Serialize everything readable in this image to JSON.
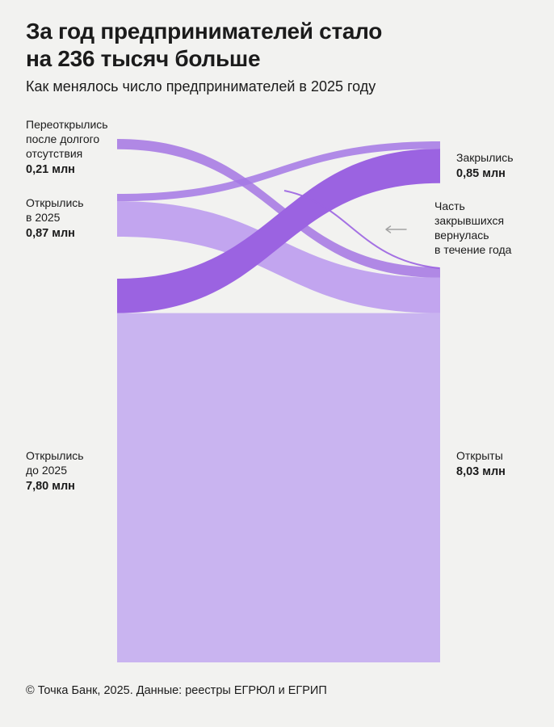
{
  "header": {
    "title_lines": [
      "За год предпринимателей стало",
      "на 236 тысяч больше"
    ],
    "subtitle": "Как менялось число предпринимателей в 2025 году"
  },
  "chart_data": {
    "type": "sankey",
    "title": "За год предпринимателей стало на 236 тысяч больше",
    "subtitle": "Как менялось число предпринимателей в 2025 году",
    "unit": "млн",
    "nodes": [
      {
        "id": "reopened",
        "side": "left",
        "label_lines": [
          "Переоткрылись",
          "после долгого",
          "отсутствия"
        ],
        "value": 0.21,
        "value_label": "0,21 млн"
      },
      {
        "id": "opened2025",
        "side": "left",
        "label_lines": [
          "Открылись",
          "в 2025"
        ],
        "value": 0.87,
        "value_label": "0,87 млн"
      },
      {
        "id": "openedBefore",
        "side": "left",
        "label_lines": [
          "Открылись",
          "до 2025"
        ],
        "value": 7.8,
        "value_label": "7,80 млн"
      },
      {
        "id": "closed",
        "side": "right",
        "label_lines": [
          "Закрылись"
        ],
        "value": 0.85,
        "value_label": "0,85 млн"
      },
      {
        "id": "open",
        "side": "right",
        "label_lines": [
          "Открыты"
        ],
        "value": 8.03,
        "value_label": "8,03 млн"
      }
    ],
    "links": [
      {
        "source": "reopened",
        "target": "open",
        "value": 0.21,
        "color": "#9e6ae2",
        "opacity": 0.78,
        "z": 3
      },
      {
        "source": "opened2025",
        "target": "closed",
        "value": 0.15,
        "color": "#a478e5",
        "opacity": 0.85,
        "z": 4
      },
      {
        "source": "opened2025",
        "target": "open",
        "value": 0.72,
        "color": "#bb9aee",
        "opacity": 0.88,
        "z": 2
      },
      {
        "source": "openedBefore",
        "target": "closed",
        "value": 0.7,
        "color": "#9b63e1",
        "opacity": 1,
        "z": 5
      },
      {
        "source": "openedBefore",
        "target": "open",
        "value": 7.1,
        "color": "#c9b4f0",
        "opacity": 1,
        "z": 1
      }
    ],
    "return_flow": {
      "color": "#9b63e1",
      "annotation_lines": [
        "Часть",
        "закрывшихся",
        "вернулась",
        "в течение года"
      ]
    },
    "colors": {
      "dark_purple": "#9b63e1",
      "light_purple": "#c9b4f0",
      "background": "#f2f2f0",
      "arrow_gray": "#a3a3a3"
    }
  },
  "footer": {
    "source": "© Точка Банк, 2025. Данные: реестры ЕГРЮЛ и ЕГРИП"
  }
}
